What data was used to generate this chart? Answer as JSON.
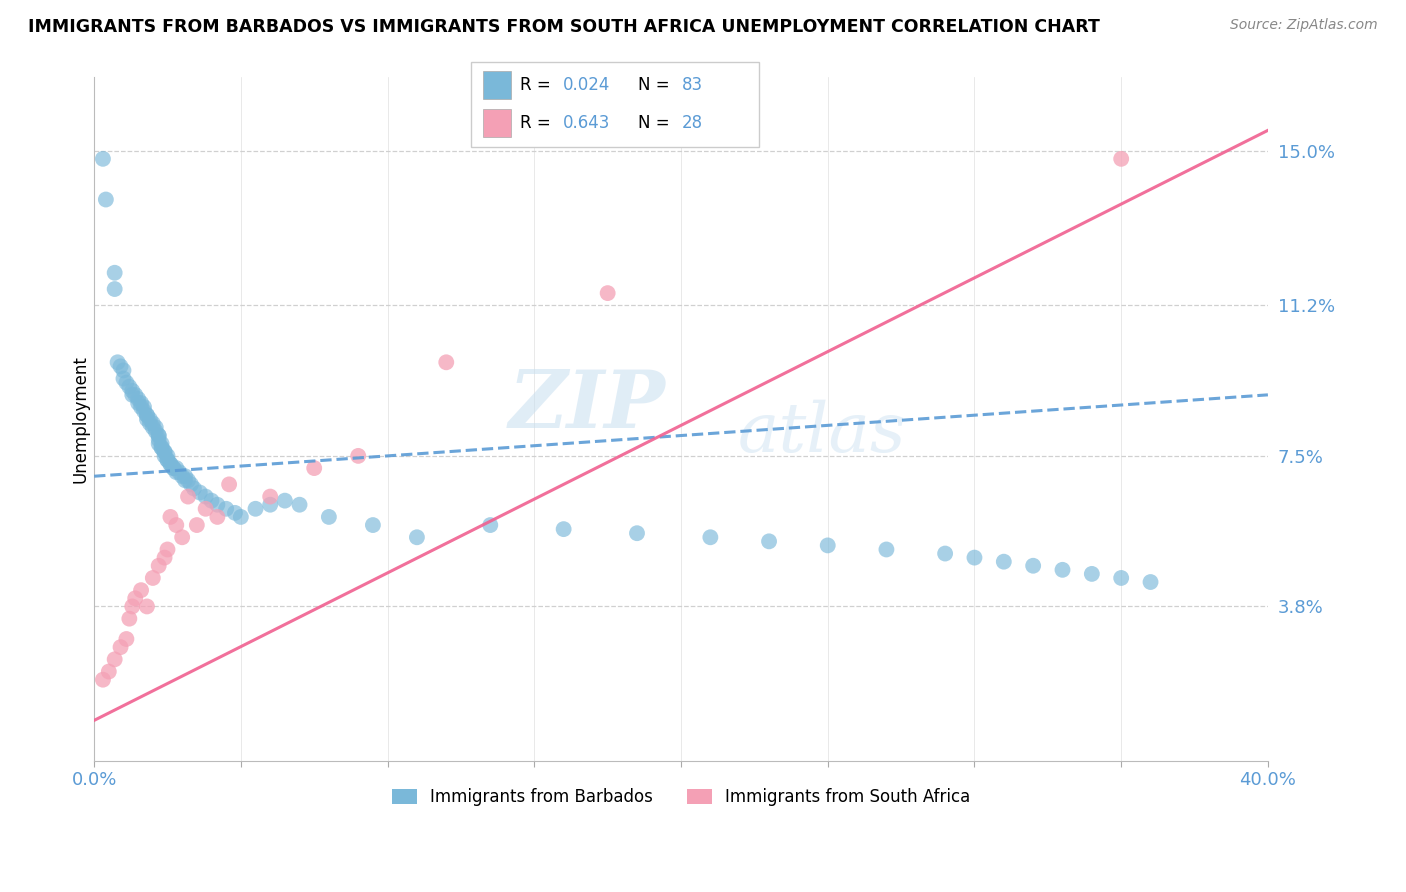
{
  "title": "IMMIGRANTS FROM BARBADOS VS IMMIGRANTS FROM SOUTH AFRICA UNEMPLOYMENT CORRELATION CHART",
  "source": "Source: ZipAtlas.com",
  "ylabel": "Unemployment",
  "ytick_labels": [
    "15.0%",
    "11.2%",
    "7.5%",
    "3.8%"
  ],
  "ytick_values": [
    0.15,
    0.112,
    0.075,
    0.038
  ],
  "xlim": [
    0.0,
    0.4
  ],
  "ylim": [
    0.0,
    0.168
  ],
  "color_barbados": "#7ab8d9",
  "color_south_africa": "#f4a0b5",
  "color_barbados_line": "#5b9bd5",
  "color_south_africa_line": "#f06090",
  "watermark_zip": "ZIP",
  "watermark_atlas": "atlas",
  "barbados_x": [
    0.003,
    0.004,
    0.007,
    0.007,
    0.008,
    0.009,
    0.01,
    0.01,
    0.011,
    0.012,
    0.013,
    0.013,
    0.014,
    0.015,
    0.015,
    0.016,
    0.016,
    0.017,
    0.017,
    0.018,
    0.018,
    0.018,
    0.019,
    0.019,
    0.02,
    0.02,
    0.021,
    0.021,
    0.022,
    0.022,
    0.022,
    0.022,
    0.023,
    0.023,
    0.023,
    0.024,
    0.024,
    0.024,
    0.025,
    0.025,
    0.025,
    0.026,
    0.026,
    0.027,
    0.027,
    0.028,
    0.028,
    0.029,
    0.03,
    0.031,
    0.031,
    0.032,
    0.033,
    0.034,
    0.036,
    0.038,
    0.04,
    0.042,
    0.045,
    0.048,
    0.05,
    0.055,
    0.06,
    0.065,
    0.07,
    0.08,
    0.095,
    0.11,
    0.135,
    0.16,
    0.185,
    0.21,
    0.23,
    0.25,
    0.27,
    0.29,
    0.3,
    0.31,
    0.32,
    0.33,
    0.34,
    0.35,
    0.36
  ],
  "barbados_y": [
    0.148,
    0.138,
    0.12,
    0.116,
    0.098,
    0.097,
    0.096,
    0.094,
    0.093,
    0.092,
    0.091,
    0.09,
    0.09,
    0.089,
    0.088,
    0.088,
    0.087,
    0.087,
    0.086,
    0.085,
    0.085,
    0.084,
    0.084,
    0.083,
    0.083,
    0.082,
    0.082,
    0.081,
    0.08,
    0.08,
    0.079,
    0.078,
    0.078,
    0.077,
    0.077,
    0.076,
    0.076,
    0.075,
    0.075,
    0.074,
    0.074,
    0.073,
    0.073,
    0.072,
    0.072,
    0.072,
    0.071,
    0.071,
    0.07,
    0.07,
    0.069,
    0.069,
    0.068,
    0.067,
    0.066,
    0.065,
    0.064,
    0.063,
    0.062,
    0.061,
    0.06,
    0.062,
    0.063,
    0.064,
    0.063,
    0.06,
    0.058,
    0.055,
    0.058,
    0.057,
    0.056,
    0.055,
    0.054,
    0.053,
    0.052,
    0.051,
    0.05,
    0.049,
    0.048,
    0.047,
    0.046,
    0.045,
    0.044
  ],
  "south_africa_x": [
    0.003,
    0.005,
    0.007,
    0.009,
    0.011,
    0.012,
    0.013,
    0.014,
    0.016,
    0.018,
    0.02,
    0.022,
    0.024,
    0.025,
    0.026,
    0.028,
    0.03,
    0.032,
    0.035,
    0.038,
    0.042,
    0.046,
    0.06,
    0.075,
    0.09,
    0.12,
    0.175,
    0.35
  ],
  "south_africa_y": [
    0.02,
    0.022,
    0.025,
    0.028,
    0.03,
    0.035,
    0.038,
    0.04,
    0.042,
    0.038,
    0.045,
    0.048,
    0.05,
    0.052,
    0.06,
    0.058,
    0.055,
    0.065,
    0.058,
    0.062,
    0.06,
    0.068,
    0.065,
    0.072,
    0.075,
    0.098,
    0.115,
    0.148
  ],
  "blue_trend_x": [
    0.0,
    0.4
  ],
  "blue_trend_y": [
    0.07,
    0.09
  ],
  "pink_trend_x": [
    0.0,
    0.4
  ],
  "pink_trend_y": [
    0.01,
    0.155
  ]
}
